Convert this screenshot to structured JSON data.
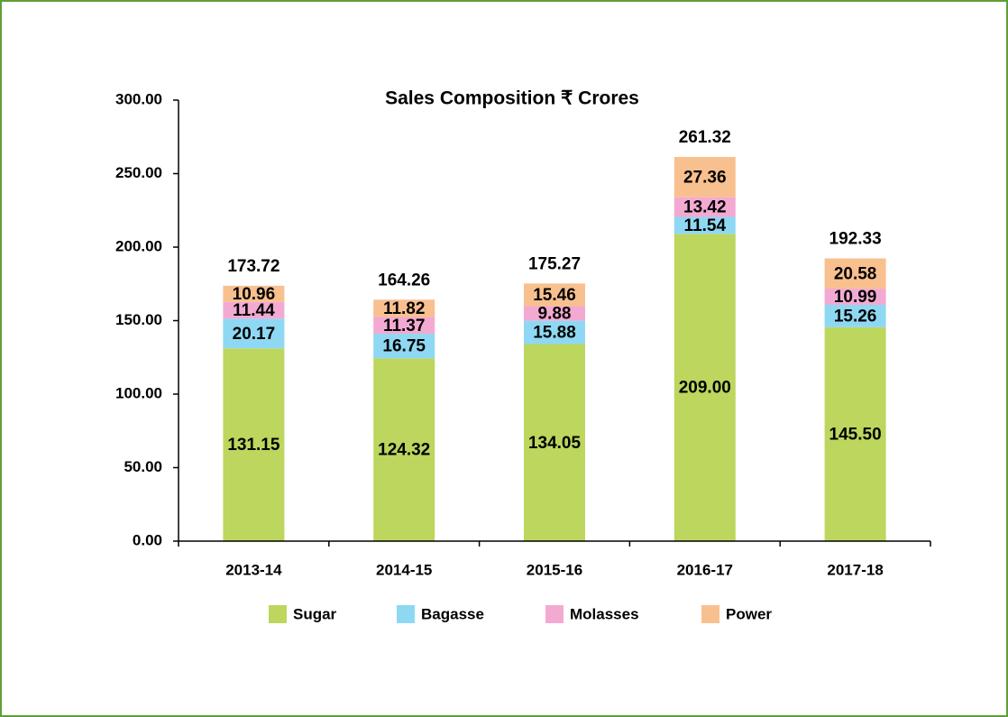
{
  "chart_data": {
    "type": "stacked_bar",
    "title": "Sales Composition ₹ Crores",
    "categories": [
      "2013-14",
      "2014-15",
      "2015-16",
      "2016-17",
      "2017-18"
    ],
    "series": [
      {
        "name": "Sugar",
        "color": "#bcd65e",
        "values": [
          131.15,
          124.32,
          134.05,
          209,
          145.5
        ],
        "value_labels": [
          "131.15",
          "124.32",
          "134.05",
          "209.00",
          "145.50"
        ]
      },
      {
        "name": "Bagasse",
        "color": "#8fd8f3",
        "values": [
          20.17,
          16.75,
          15.88,
          11.54,
          15.26
        ],
        "value_labels": [
          "20.17",
          "16.75",
          "15.88",
          "11.54",
          "15.26"
        ]
      },
      {
        "name": "Molasses",
        "color": "#f3aad2",
        "values": [
          11.44,
          11.37,
          9.88,
          13.42,
          10.99
        ],
        "value_labels": [
          "11.44",
          "11.37",
          "9.88",
          "13.42",
          "10.99"
        ]
      },
      {
        "name": "Power",
        "color": "#f9c08f",
        "values": [
          10.96,
          11.82,
          15.46,
          27.36,
          20.58
        ],
        "value_labels": [
          "10.96",
          "11.82",
          "15.46",
          "27.36",
          "20.58"
        ]
      }
    ],
    "totals": [
      173.72,
      164.26,
      175.27,
      261.32,
      192.33
    ],
    "ylim": [
      0,
      300
    ],
    "yticks": [
      {
        "value": 0,
        "label": "0.00"
      },
      {
        "value": 50,
        "label": "50.00"
      },
      {
        "value": 100,
        "label": "100.00"
      },
      {
        "value": 150,
        "label": "150.00"
      },
      {
        "value": 200,
        "label": "200.00"
      },
      {
        "value": 250,
        "label": "250.00"
      },
      {
        "value": 300,
        "label": "300.00"
      }
    ],
    "legend": "bottom"
  }
}
